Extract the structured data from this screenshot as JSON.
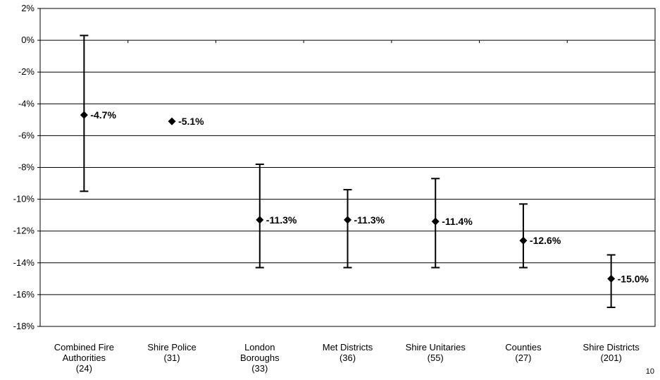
{
  "page_number": "10",
  "chart_data": {
    "type": "scatter",
    "title": "",
    "xlabel": "",
    "ylabel": "",
    "ylim": [
      -18,
      2
    ],
    "y_ticks": [
      "2%",
      "0%",
      "-2%",
      "-4%",
      "-6%",
      "-8%",
      "-10%",
      "-12%",
      "-14%",
      "-16%",
      "-18%"
    ],
    "y_tick_values": [
      2,
      0,
      -2,
      -4,
      -6,
      -8,
      -10,
      -12,
      -14,
      -16,
      -18
    ],
    "grid": true,
    "categories": [
      [
        "Combined Fire",
        "Authorities",
        "(24)"
      ],
      [
        "Shire Police",
        "(31)"
      ],
      [
        "London",
        "Boroughs",
        "(33)"
      ],
      [
        "Met Districts",
        "(36)"
      ],
      [
        "Shire Unitaries",
        "(55)"
      ],
      [
        "Counties",
        "(27)"
      ],
      [
        "Shire Districts",
        "(201)"
      ]
    ],
    "values": [
      -4.7,
      -5.1,
      -11.3,
      -11.3,
      -11.4,
      -12.6,
      -15.0
    ],
    "labels": [
      "-4.7%",
      "-5.1%",
      "-11.3%",
      "-11.3%",
      "-11.4%",
      "-12.6%",
      "-15.0%"
    ],
    "high": [
      0.3,
      null,
      -7.8,
      -9.4,
      -8.7,
      -10.3,
      -13.5
    ],
    "low": [
      -9.5,
      null,
      -14.3,
      -14.3,
      -14.3,
      -14.3,
      -16.8
    ]
  }
}
